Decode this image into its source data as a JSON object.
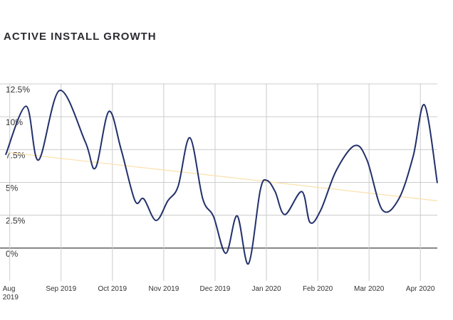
{
  "chart_data": {
    "type": "line",
    "title": "ACTIVE INSTALL GROWTH",
    "x": [
      -0.08,
      0.32,
      0.56,
      0.97,
      1.47,
      1.67,
      1.93,
      2.17,
      2.44,
      2.61,
      2.85,
      3.08,
      3.28,
      3.51,
      3.76,
      3.97,
      4.21,
      4.43,
      4.65,
      4.88,
      5.01,
      5.17,
      5.36,
      5.69,
      5.85,
      6.06,
      6.36,
      6.72,
      6.96,
      7.26,
      7.58,
      7.86,
      8.08,
      8.33
    ],
    "series": [
      {
        "color": "#22306a",
        "values": [
          7.1,
          10.8,
          6.7,
          12.0,
          8.1,
          6.1,
          10.4,
          7.5,
          3.6,
          3.75,
          2.1,
          3.6,
          4.7,
          8.4,
          3.75,
          2.4,
          -0.4,
          2.45,
          -1.2,
          4.4,
          5.15,
          4.3,
          2.55,
          4.3,
          1.95,
          2.9,
          5.9,
          7.8,
          6.7,
          2.9,
          3.75,
          7.0,
          10.9,
          4.95
        ]
      }
    ],
    "trend": {
      "x": [
        -0.08,
        8.33
      ],
      "values": [
        7.3,
        3.6
      ],
      "color": "#fbe0ab"
    },
    "xlim": [
      -0.19,
      8.33
    ],
    "xticks": [
      {
        "value": 0,
        "label": "Aug 2019"
      },
      {
        "value": 1,
        "label": "Sep 2019"
      },
      {
        "value": 2,
        "label": "Oct 2019"
      },
      {
        "value": 3,
        "label": "Nov 2019"
      },
      {
        "value": 4,
        "label": "Dec 2019"
      },
      {
        "value": 5,
        "label": "Jan 2020"
      },
      {
        "value": 6,
        "label": "Feb 2020"
      },
      {
        "value": 7,
        "label": "Mar 2020"
      },
      {
        "value": 8,
        "label": "Apr 2020"
      }
    ],
    "ylim": [
      -2.5,
      12.5
    ],
    "yticks": [
      {
        "value": 0,
        "label": "0%"
      },
      {
        "value": 2.5,
        "label": "2.5%"
      },
      {
        "value": 5,
        "label": "5%"
      },
      {
        "value": 7.5,
        "label": "7.5%"
      },
      {
        "value": 10,
        "label": "10%"
      },
      {
        "value": 12.5,
        "label": "12.5%"
      }
    ],
    "grid": true
  }
}
